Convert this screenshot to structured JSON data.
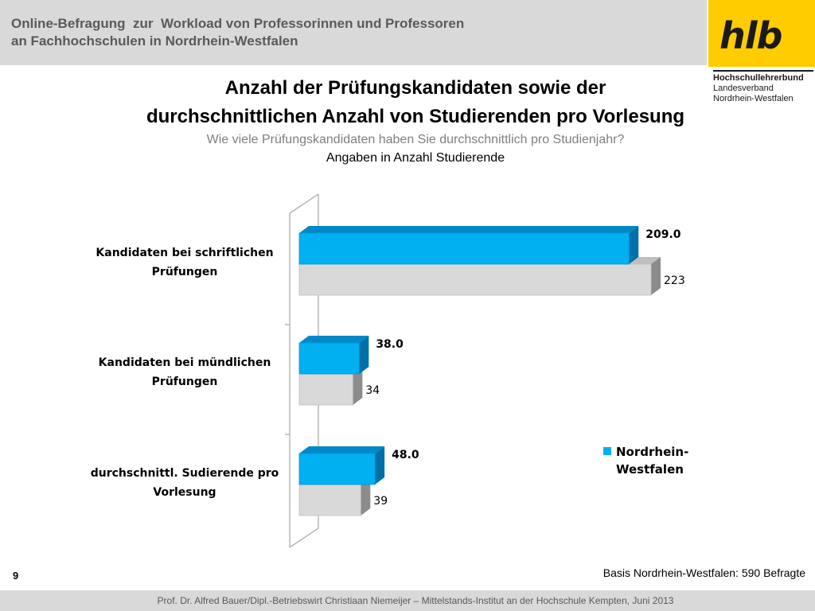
{
  "header": {
    "line1": "Online-Befragung  zur  Workload von Professorinnen und Professoren",
    "line2": "an Fachhochschulen in Nordrhein-Westfalen"
  },
  "logo": {
    "mark": "hlb",
    "line1": "Hochschullehrerbund",
    "line2": "Landesverband",
    "line3": "Nordrhein-Westfalen"
  },
  "slide": {
    "title_line1": "Anzahl der Prüfungskandidaten sowie der",
    "title_line2": "durchschnittlichen Anzahl von Studierenden pro Vorlesung",
    "subtitle": "Wie viele Prüfungskandidaten haben Sie durchschnittlich pro Studienjahr?",
    "note": "Angaben in Anzahl Studierende",
    "page_number": "9",
    "basis": "Basis Nordrhein-Westfalen: 590 Befragte"
  },
  "footer": {
    "text": "Prof. Dr. Alfred Bauer/Dipl.-Betriebswirt Christiaan Niemeijer – Mittelstands-Institut an der Hochschule Kempten, Juni 2013"
  },
  "colors": {
    "primary": "#00b0f0",
    "primary_side": "#0070a8",
    "secondary": "#d9d9d9",
    "secondary_side": "#8c8c8c"
  },
  "chart_data": {
    "type": "bar",
    "orientation": "horizontal",
    "style": "3d-clustered",
    "categories": [
      [
        "Kandidaten bei schriftlichen",
        "Prüfungen"
      ],
      [
        "Kandidaten bei mündlichen",
        "Prüfungen"
      ],
      [
        "durchschnittl. Sudierende pro",
        "Vorlesung"
      ]
    ],
    "series": [
      {
        "name": "Nordrhein-Westfalen",
        "values": [
          209.0,
          38.0,
          48.0
        ],
        "labels": [
          "209.0",
          "38.0",
          "48.0"
        ],
        "color": "#00b0f0"
      },
      {
        "values": [
          223,
          34,
          39
        ],
        "labels": [
          "223",
          "34",
          "39"
        ],
        "color": "#d9d9d9"
      }
    ],
    "xlim": [
      0,
      240
    ],
    "legend": {
      "position": "right",
      "entries": [
        "Nordrhein-\nWestfalen"
      ]
    },
    "grid": false
  }
}
